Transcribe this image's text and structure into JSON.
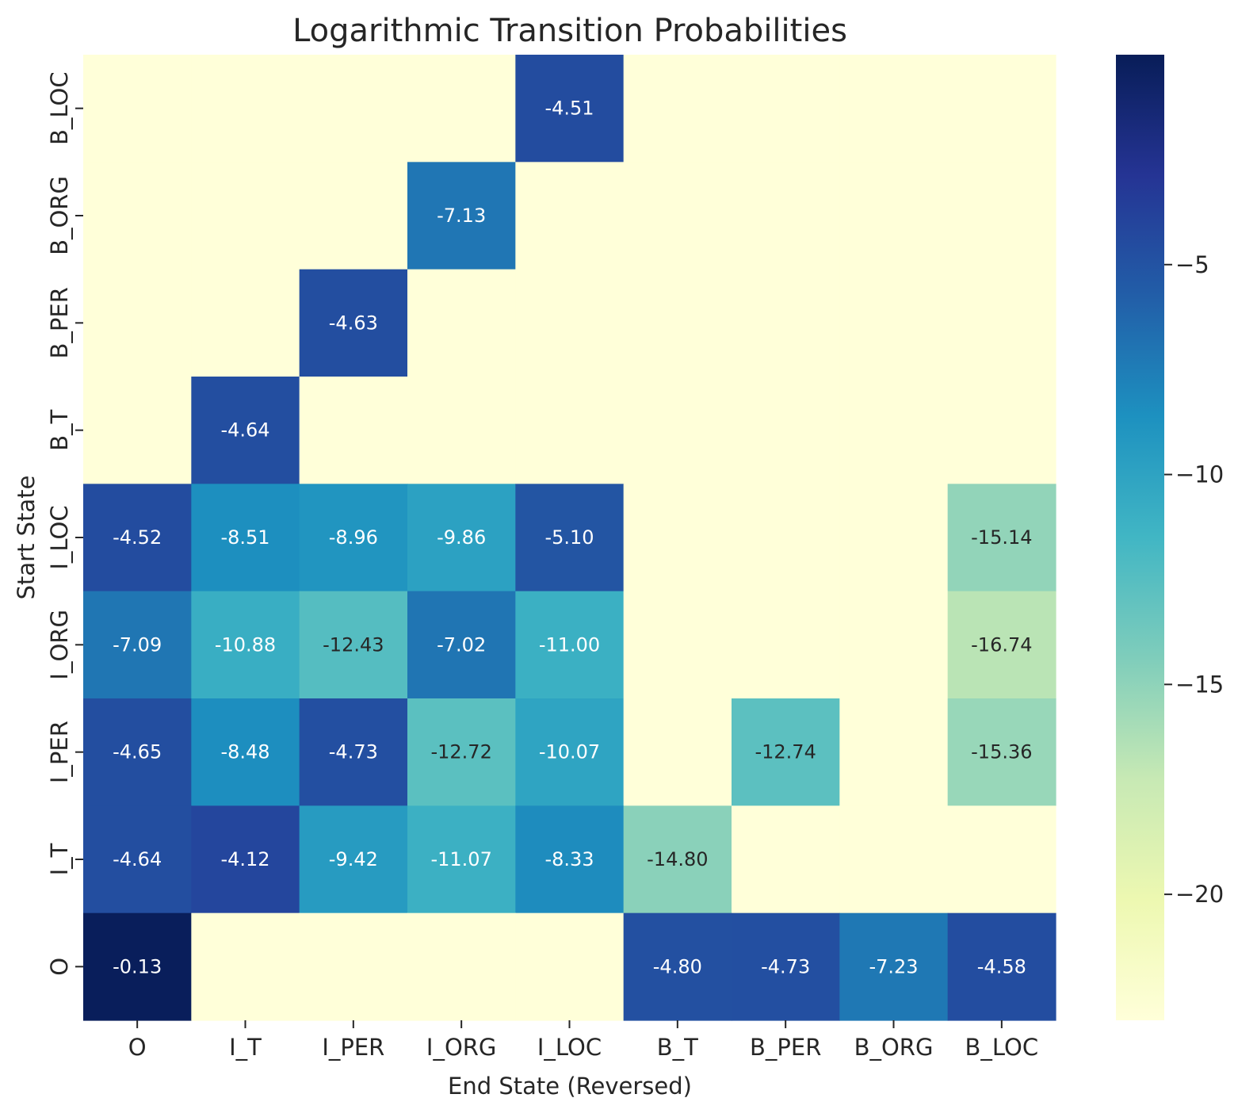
{
  "chart_data": {
    "type": "heatmap",
    "title": "Logarithmic Transition Probabilities",
    "xlabel": "End State (Reversed)",
    "ylabel": "Start State",
    "x_categories": [
      "O",
      "I_T",
      "I_PER",
      "I_ORG",
      "I_LOC",
      "B_T",
      "B_PER",
      "B_ORG",
      "B_LOC"
    ],
    "y_categories": [
      "B_LOC",
      "B_ORG",
      "B_PER",
      "B_T",
      "I_LOC",
      "I_ORG",
      "I_PER",
      "I_T",
      "O"
    ],
    "values": [
      [
        null,
        null,
        null,
        null,
        -4.51,
        null,
        null,
        null,
        null
      ],
      [
        null,
        null,
        null,
        -7.13,
        null,
        null,
        null,
        null,
        null
      ],
      [
        null,
        null,
        -4.63,
        null,
        null,
        null,
        null,
        null,
        null
      ],
      [
        null,
        -4.64,
        null,
        null,
        null,
        null,
        null,
        null,
        null
      ],
      [
        -4.52,
        -8.51,
        -8.96,
        -9.86,
        -5.1,
        null,
        null,
        null,
        -15.14
      ],
      [
        -7.09,
        -10.88,
        -12.43,
        -7.02,
        -11.0,
        null,
        null,
        null,
        -16.74
      ],
      [
        -4.65,
        -8.48,
        -4.73,
        -12.72,
        -10.07,
        null,
        -12.74,
        null,
        -15.36
      ],
      [
        -4.64,
        -4.12,
        -9.42,
        -11.07,
        -8.33,
        -14.8,
        null,
        null,
        null
      ],
      [
        -0.13,
        null,
        null,
        null,
        null,
        -4.8,
        -4.73,
        -7.23,
        -4.58
      ]
    ],
    "empty_cell_value": -23.0,
    "colormap": "YlGnBu",
    "colorbar": {
      "range": [
        -23.0,
        0.0
      ],
      "ticks": [
        -5,
        -10,
        -15,
        -20
      ],
      "tick_labels": [
        "−5",
        "−10",
        "−15",
        "−20"
      ]
    },
    "grid": false,
    "legend": "colorbar-right"
  }
}
